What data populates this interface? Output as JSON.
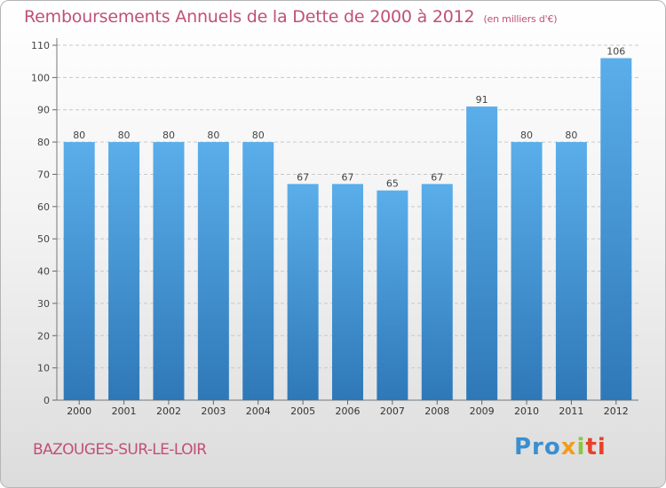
{
  "chart_data": {
    "type": "bar",
    "title": "Remboursements Annuels de la Dette de 2000 à 2012",
    "unit_label": "(en milliers d'€)",
    "categories": [
      "2000",
      "2001",
      "2002",
      "2003",
      "2004",
      "2005",
      "2006",
      "2007",
      "2008",
      "2009",
      "2010",
      "2011",
      "2012"
    ],
    "values": [
      80,
      80,
      80,
      80,
      80,
      67,
      67,
      65,
      67,
      91,
      80,
      80,
      106
    ],
    "ylim": [
      0,
      110
    ],
    "yticks": [
      0,
      10,
      20,
      30,
      40,
      50,
      60,
      70,
      80,
      90,
      100,
      110
    ],
    "xlabel": "",
    "ylabel": "",
    "grid": true,
    "bar_color_top": "#5aaeea",
    "bar_color_bottom": "#2f78b8"
  },
  "commune": "BAZOUGES-SUR-LE-LOIR",
  "logo": {
    "part1": "Pro",
    "part2": "x",
    "part3": "i",
    "part4": "ti"
  }
}
